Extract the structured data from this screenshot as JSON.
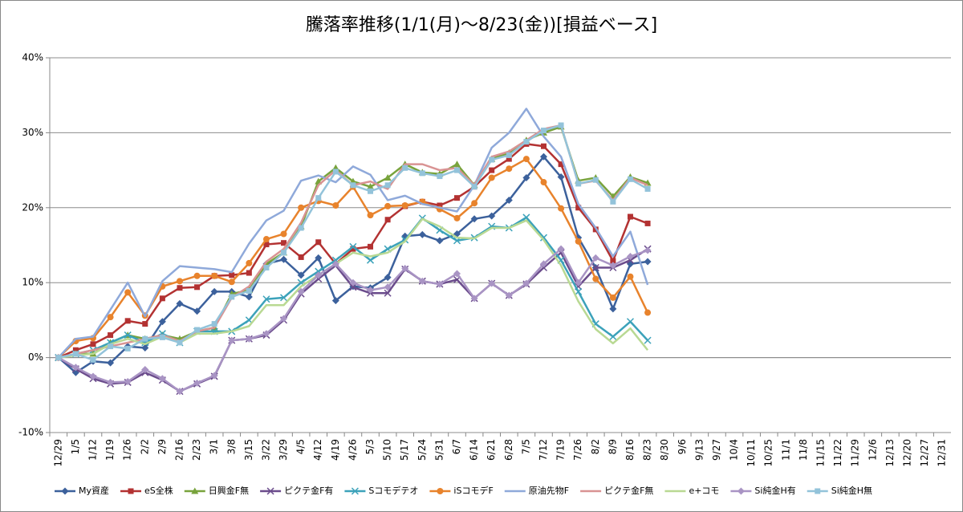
{
  "chart_data": {
    "type": "line",
    "title": "騰落率推移(1/1(月)～8/23(金))[損益ベース]",
    "categories": [
      "12/29",
      "1/5",
      "1/12",
      "1/19",
      "1/26",
      "2/2",
      "2/9",
      "2/16",
      "2/23",
      "3/1",
      "3/8",
      "3/15",
      "3/22",
      "3/29",
      "4/5",
      "4/12",
      "4/19",
      "4/26",
      "5/3",
      "5/10",
      "5/17",
      "5/24",
      "5/31",
      "6/7",
      "6/14",
      "6/21",
      "6/28",
      "7/5",
      "7/12",
      "7/19",
      "7/26",
      "8/2",
      "8/9",
      "8/16",
      "8/23",
      "8/30",
      "9/6",
      "9/13",
      "9/27",
      "10/4",
      "10/11",
      "10/25",
      "11/1",
      "11/8",
      "11/15",
      "11/22",
      "11/29",
      "12/6",
      "12/13",
      "12/20",
      "12/27",
      "12/31"
    ],
    "ylim": [
      -10,
      40
    ],
    "yticks": [
      {
        "value": -10,
        "label": "-10%"
      },
      {
        "value": 0,
        "label": "0%"
      },
      {
        "value": 10,
        "label": "10%"
      },
      {
        "value": 20,
        "label": "20%"
      },
      {
        "value": 30,
        "label": "30%"
      },
      {
        "value": 40,
        "label": "40%"
      }
    ],
    "grid": true,
    "legend": "bottom",
    "series": [
      {
        "name": "My資産",
        "color": "#3c619c",
        "marker": "diamond",
        "values": [
          0,
          -2,
          -0.5,
          -0.7,
          1.5,
          1.3,
          4.8,
          7.2,
          6.2,
          8.8,
          8.8,
          8.1,
          12.5,
          13.1,
          11,
          13.3,
          7.6,
          9.5,
          9.3,
          10.7,
          16.2,
          16.4,
          15.6,
          16.5,
          18.5,
          18.9,
          21,
          24,
          26.8,
          24.1,
          16,
          12,
          6.5,
          12.5,
          12.8,
          null,
          null,
          null,
          null,
          null,
          null,
          null,
          null,
          null,
          null,
          null,
          null,
          null,
          null,
          null,
          null,
          null
        ]
      },
      {
        "name": "eS全株",
        "color": "#b33232",
        "marker": "square",
        "values": [
          0,
          1,
          1.8,
          3,
          4.9,
          4.5,
          7.9,
          9.3,
          9.4,
          10.9,
          11,
          11.3,
          15.1,
          15.3,
          13.4,
          15.4,
          12.5,
          14.5,
          14.8,
          18.4,
          20.2,
          20.8,
          20.3,
          21.3,
          22.8,
          25,
          26.5,
          28.5,
          28.2,
          25.8,
          20,
          17.1,
          12.9,
          18.8,
          17.9,
          null,
          null,
          null,
          null,
          null,
          null,
          null,
          null,
          null,
          null,
          null,
          null,
          null,
          null,
          null,
          null,
          null
        ]
      },
      {
        "name": "日興金F無",
        "color": "#78a33c",
        "marker": "triangle",
        "values": [
          0,
          0.5,
          0.5,
          2,
          3,
          2.5,
          3,
          2.5,
          3.5,
          4,
          8.5,
          9,
          12.5,
          14,
          17.5,
          23.5,
          25.3,
          23.5,
          22.8,
          24,
          25.8,
          24.7,
          24.5,
          25.8,
          23,
          26.5,
          27.3,
          29,
          30,
          30.8,
          23.6,
          24,
          21.5,
          24.1,
          23.3,
          null,
          null,
          null,
          null,
          null,
          null,
          null,
          null,
          null,
          null,
          null,
          null,
          null,
          null,
          null,
          null,
          null
        ]
      },
      {
        "name": "ピクテ金F有",
        "color": "#6b4c8c",
        "marker": "x",
        "values": [
          0,
          -1.5,
          -2.8,
          -3.5,
          -3.3,
          -2,
          -3,
          -4.5,
          -3.5,
          -2.5,
          2.3,
          2.5,
          3,
          5,
          8.5,
          10.5,
          12.3,
          9.4,
          8.6,
          8.6,
          11.8,
          10.2,
          9.8,
          10.4,
          7.9,
          9.9,
          8.3,
          9.8,
          12,
          14,
          9.5,
          12,
          12,
          13,
          14.5,
          null,
          null,
          null,
          null,
          null,
          null,
          null,
          null,
          null,
          null,
          null,
          null,
          null,
          null,
          null,
          null,
          null
        ]
      },
      {
        "name": "Sコモデテオ",
        "color": "#3ca2ba",
        "marker": "x",
        "values": [
          0,
          0.5,
          1,
          2,
          3,
          2,
          3.2,
          2,
          3.5,
          3.5,
          3.5,
          5,
          7.8,
          8,
          10,
          11.5,
          13,
          14.8,
          13,
          14.5,
          15.7,
          18.6,
          17,
          15.6,
          16,
          17.5,
          17.3,
          18.7,
          16,
          13,
          8.8,
          4.5,
          2.8,
          4.8,
          2.3,
          null,
          null,
          null,
          null,
          null,
          null,
          null,
          null,
          null,
          null,
          null,
          null,
          null,
          null,
          null,
          null,
          null
        ]
      },
      {
        "name": "iSコモデF",
        "color": "#e8832c",
        "marker": "circle",
        "values": [
          0,
          2.2,
          2.6,
          5.4,
          8.7,
          5.6,
          9.5,
          10.2,
          10.9,
          10.9,
          10.1,
          12.6,
          15.8,
          16.5,
          20,
          20.9,
          20.3,
          22.8,
          19,
          20.2,
          20.3,
          20.8,
          19.8,
          18.6,
          20.6,
          24,
          25.2,
          26.5,
          23.4,
          19.9,
          15.5,
          10.5,
          8,
          10.8,
          6,
          null,
          null,
          null,
          null,
          null,
          null,
          null,
          null,
          null,
          null,
          null,
          null,
          null,
          null,
          null,
          null,
          null
        ]
      },
      {
        "name": "原油先物F",
        "color": "#8fa9da",
        "marker": "none",
        "values": [
          0,
          2.5,
          2.8,
          6.4,
          10,
          5.5,
          10.2,
          12.2,
          12,
          11.8,
          11.4,
          15.2,
          18.3,
          19.6,
          23.6,
          24.3,
          23.4,
          25.5,
          24.4,
          21,
          21.6,
          20.5,
          20,
          19.5,
          23,
          28,
          30,
          33.2,
          29.5,
          26.8,
          20.5,
          17.3,
          13.5,
          16.8,
          9.7,
          null,
          null,
          null,
          null,
          null,
          null,
          null,
          null,
          null,
          null,
          null,
          null,
          null,
          null,
          null,
          null,
          null
        ]
      },
      {
        "name": "ピクテ金F無",
        "color": "#d99393",
        "marker": "none",
        "values": [
          0,
          0.5,
          1,
          1.5,
          2,
          2.5,
          3,
          2.2,
          3.5,
          4,
          8,
          9.5,
          12.8,
          14.5,
          18,
          23,
          25,
          23,
          23.5,
          22.5,
          25.8,
          25.8,
          25,
          25.3,
          23,
          26.8,
          27.5,
          29,
          30.5,
          31,
          23.2,
          23.6,
          21,
          24,
          23,
          null,
          null,
          null,
          null,
          null,
          null,
          null,
          null,
          null,
          null,
          null,
          null,
          null,
          null,
          null,
          null,
          null
        ]
      },
      {
        "name": "e+コモ",
        "color": "#b9d993",
        "marker": "none",
        "values": [
          0,
          0.3,
          0.5,
          1.8,
          2.5,
          1.8,
          2.8,
          2,
          3.2,
          3.2,
          3.5,
          4.2,
          7,
          7,
          9.5,
          11,
          12.5,
          14,
          13.5,
          14,
          15.5,
          18.5,
          17.5,
          16,
          15.9,
          17.3,
          17.3,
          18.3,
          15.7,
          12.3,
          7.5,
          3.8,
          1.9,
          3.9,
          1,
          null,
          null,
          null,
          null,
          null,
          null,
          null,
          null,
          null,
          null,
          null,
          null,
          null,
          null,
          null,
          null,
          null
        ]
      },
      {
        "name": "Si純金H有",
        "color": "#a994c4",
        "marker": "diamond",
        "values": [
          0,
          -1.3,
          -2.5,
          -3.3,
          -3.2,
          -1.6,
          -2.8,
          -4.5,
          -3.4,
          -2.4,
          2.3,
          2.5,
          3.2,
          5.2,
          8.8,
          11,
          12.5,
          10,
          9,
          9.4,
          11.9,
          10.2,
          9.8,
          11.2,
          7.9,
          9.9,
          8.3,
          9.9,
          12.5,
          14.5,
          10,
          13.3,
          12.3,
          13.5,
          14.3,
          null,
          null,
          null,
          null,
          null,
          null,
          null,
          null,
          null,
          null,
          null,
          null,
          null,
          null,
          null,
          null,
          null
        ]
      },
      {
        "name": "Si純金H無",
        "color": "#93c3da",
        "marker": "square",
        "values": [
          0,
          0.5,
          -0.3,
          1.5,
          1.2,
          2.5,
          2.7,
          2,
          3.7,
          4.5,
          8.1,
          8.9,
          12,
          14,
          17.3,
          21.3,
          24.8,
          23,
          22.2,
          23,
          25.3,
          24.6,
          24.2,
          25,
          22.8,
          26.4,
          27,
          28.8,
          30.3,
          31,
          23.2,
          23.7,
          20.8,
          23.8,
          22.5,
          null,
          null,
          null,
          null,
          null,
          null,
          null,
          null,
          null,
          null,
          null,
          null,
          null,
          null,
          null,
          null,
          null
        ]
      }
    ]
  }
}
